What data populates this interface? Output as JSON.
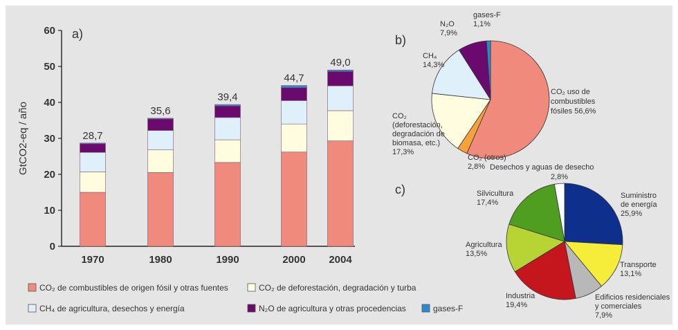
{
  "chart_data": [
    {
      "panel": "a)",
      "type": "bar",
      "stacked": true,
      "ylabel": "GtCO2-eq / año",
      "ylim": [
        0,
        60
      ],
      "yticks": [
        0,
        10,
        20,
        30,
        40,
        50,
        60
      ],
      "categories": [
        "1970",
        "1980",
        "1990",
        "2000",
        "2004"
      ],
      "x": [
        1970,
        1980,
        1990,
        2000,
        2004
      ],
      "totals": [
        "28,7",
        "35,6",
        "39,4",
        "44,7",
        "49,0"
      ],
      "series": [
        {
          "name": "CO2 de combustibles de origen fósil y otras fuentes",
          "color": "#f08a7c",
          "values": [
            15.0,
            20.5,
            23.3,
            26.2,
            29.3
          ]
        },
        {
          "name": "CO2 de deforestación, degradación y turba",
          "color": "#fffce0",
          "values": [
            5.7,
            6.3,
            6.3,
            7.8,
            8.4
          ]
        },
        {
          "name": "CH4 de agricultura, desechos y energía",
          "color": "#dff0fa",
          "values": [
            5.4,
            5.4,
            6.2,
            6.5,
            6.9
          ]
        },
        {
          "name": "N2O de agricultura y otras procedencias",
          "color": "#6a0a6e",
          "values": [
            2.4,
            3.2,
            3.2,
            3.6,
            4.0
          ]
        },
        {
          "name": "gases-F",
          "color": "#2a8ad0",
          "values": [
            0.2,
            0.2,
            0.4,
            0.6,
            0.4
          ]
        }
      ],
      "legend": [
        {
          "label": "CO₂ de combustibles de origen fósil y otras fuentes",
          "color": "#f08a7c"
        },
        {
          "label": "CO₂ de deforestación, degradación y turba",
          "color": "#fffce0"
        },
        {
          "label": "CH₄ de agricultura, desechos y energía",
          "color": "#dff0fa"
        },
        {
          "label": "N₂O de agricultura y otras procedencias",
          "color": "#6a0a6e"
        },
        {
          "label": "gases-F",
          "color": "#2a8ad0"
        }
      ]
    },
    {
      "panel": "b)",
      "type": "pie",
      "slices": [
        {
          "name": "CO₂ uso de combustibles fósiles",
          "value": 56.6,
          "label": "56,6%",
          "color": "#f08a7c"
        },
        {
          "name": "CO₂ (otros)",
          "value": 2.8,
          "label": "2,8%",
          "color": "#f5a23a"
        },
        {
          "name": "CO₂ (deforestación, degradación de biomasa, etc.)",
          "value": 17.3,
          "label": "17,3%",
          "color": "#fffce0"
        },
        {
          "name": "CH₄",
          "value": 14.3,
          "label": "14,3%",
          "color": "#dff0fa"
        },
        {
          "name": "N₂O",
          "value": 7.9,
          "label": "7,9%",
          "color": "#6a0a6e"
        },
        {
          "name": "gases-F",
          "value": 1.1,
          "label": "1,1%",
          "color": "#2a8ad0"
        }
      ],
      "labels": {
        "co2_fossil": [
          "CO₂ uso de",
          "combustibles",
          "fósiles 56,6%"
        ],
        "co2_other": [
          "CO₂ (otros)",
          "2,8%"
        ],
        "co2_defor": [
          "CO₂",
          "(deforestación,",
          "degradación de",
          "biomasa, etc.)",
          "17,3%"
        ],
        "ch4": [
          "CH₄",
          "14,3%"
        ],
        "n2o": [
          "N₂O",
          "7,9%"
        ],
        "fgas": [
          "gases-F",
          "1,1%"
        ]
      }
    },
    {
      "panel": "c)",
      "type": "pie",
      "slices": [
        {
          "name": "Suministro de energía",
          "value": 25.9,
          "label": "25,9%",
          "color": "#0f2f8c"
        },
        {
          "name": "Transporte",
          "value": 13.1,
          "label": "13,1%",
          "color": "#f6ec3a"
        },
        {
          "name": "Edificios residenciales y comerciales",
          "value": 7.9,
          "label": "7,9%",
          "color": "#b8b8b8"
        },
        {
          "name": "Industria",
          "value": 19.4,
          "label": "19,4%",
          "color": "#c4161c"
        },
        {
          "name": "Agricultura",
          "value": 13.5,
          "label": "13,5%",
          "color": "#b7d334"
        },
        {
          "name": "Silvicultura",
          "value": 17.4,
          "label": "17,4%",
          "color": "#4f9e1f"
        },
        {
          "name": "Desechos y aguas de desecho",
          "value": 2.8,
          "label": "2,8%",
          "color": "#ffffff"
        }
      ],
      "labels": {
        "energy": [
          "Suministro",
          "de energía",
          "25,9%"
        ],
        "transport": [
          "Transporte",
          "13,1%"
        ],
        "buildings": [
          "Edificios residenciales",
          "y comerciales",
          "7,9%"
        ],
        "industry": [
          "Industria",
          "19,4%"
        ],
        "agriculture": [
          "Agricultura",
          "13,5%"
        ],
        "forestry": [
          "Silvicultura",
          "17,4%"
        ],
        "waste": [
          "Desechos y aguas de desecho",
          "2,8%"
        ]
      }
    }
  ]
}
